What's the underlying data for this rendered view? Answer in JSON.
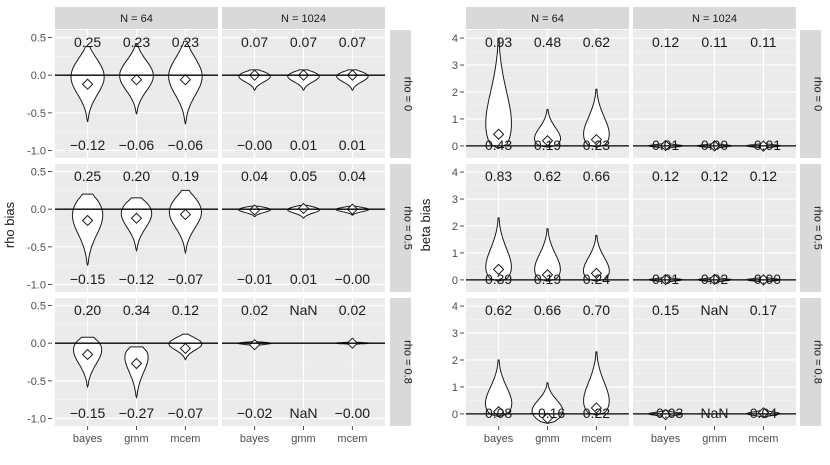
{
  "chart_data": [
    {
      "type": "violin",
      "ylabel": "rho bias",
      "ylim": [
        -1.1,
        0.6
      ],
      "yticks": [
        -1.0,
        -0.5,
        0.0,
        0.5
      ],
      "ytick_labels": [
        "-1.0",
        "-0.5",
        "0.0",
        "0.5"
      ],
      "categories": [
        "bayes",
        "gmm",
        "mcem"
      ],
      "col_labels": [
        "N = 64",
        "N = 1024"
      ],
      "row_labels": [
        "rho = 0",
        "rho = 0.5",
        "rho = 0.8"
      ],
      "reference_line": 0,
      "cells": [
        [
          {
            "top": [
              "0.25",
              "0.23",
              "0.23"
            ],
            "bottom": [
              "−0.12",
              "−0.06",
              "−0.06"
            ],
            "mean": [
              -0.12,
              -0.06,
              -0.06
            ],
            "min": [
              -0.62,
              -0.52,
              -0.65
            ],
            "max": [
              0.38,
              0.42,
              0.45
            ]
          },
          {
            "top": [
              "0.07",
              "0.07",
              "0.07"
            ],
            "bottom": [
              "−0.00",
              "0.01",
              "0.01"
            ],
            "mean": [
              0.0,
              0.0,
              0.0
            ],
            "min": [
              -0.2,
              -0.2,
              -0.2
            ],
            "max": [
              0.07,
              0.07,
              0.07
            ]
          }
        ],
        [
          {
            "top": [
              "0.25",
              "0.20",
              "0.19"
            ],
            "bottom": [
              "−0.15",
              "−0.12",
              "−0.07"
            ],
            "mean": [
              -0.15,
              -0.12,
              -0.07
            ],
            "min": [
              -0.75,
              -0.55,
              -0.58
            ],
            "max": [
              0.2,
              0.15,
              0.25
            ]
          },
          {
            "top": [
              "0.04",
              "0.05",
              "0.04"
            ],
            "bottom": [
              "−0.01",
              "0.01",
              "−0.00"
            ],
            "mean": [
              -0.01,
              0.01,
              0.0
            ],
            "min": [
              -0.1,
              -0.12,
              -0.08
            ],
            "max": [
              0.04,
              0.05,
              0.04
            ]
          }
        ],
        [
          {
            "top": [
              "0.20",
              "0.34",
              "0.12"
            ],
            "bottom": [
              "−0.15",
              "−0.27",
              "−0.07"
            ],
            "mean": [
              -0.15,
              -0.27,
              -0.07
            ],
            "min": [
              -0.58,
              -0.72,
              -0.22
            ],
            "max": [
              0.08,
              -0.05,
              0.12
            ]
          },
          {
            "top": [
              "0.02",
              "NaN",
              "0.02"
            ],
            "bottom": [
              "−0.02",
              "NaN",
              "−0.00"
            ],
            "mean": [
              -0.02,
              null,
              0.0
            ],
            "min": [
              -0.04,
              null,
              -0.02
            ],
            "max": [
              0.02,
              null,
              0.02
            ]
          }
        ]
      ]
    },
    {
      "type": "violin",
      "ylabel": "beta bias",
      "ylim": [
        -0.45,
        4.3
      ],
      "yticks": [
        0,
        1,
        2,
        3,
        4
      ],
      "ytick_labels": [
        "0",
        "1",
        "2",
        "3",
        "4"
      ],
      "categories": [
        "bayes",
        "gmm",
        "mcem"
      ],
      "col_labels": [
        "N = 64",
        "N = 1024"
      ],
      "row_labels": [
        "rho = 0",
        "rho = 0.5",
        "rho = 0.8"
      ],
      "reference_line": 0,
      "cells": [
        [
          {
            "top": [
              "0.93",
              "0.48",
              "0.62"
            ],
            "bottom": [
              "0.43",
              "0.19",
              "0.23"
            ],
            "mean": [
              0.43,
              0.19,
              0.23
            ],
            "min": [
              -0.1,
              -0.05,
              -0.05
            ],
            "max": [
              4.0,
              1.35,
              2.1
            ]
          },
          {
            "top": [
              "0.12",
              "0.11",
              "0.11"
            ],
            "bottom": [
              "0.01",
              "0.00",
              "−0.01"
            ],
            "mean": [
              0.01,
              0.0,
              -0.01
            ],
            "min": [
              -0.1,
              -0.1,
              -0.1
            ],
            "max": [
              0.12,
              0.11,
              0.11
            ]
          }
        ],
        [
          {
            "top": [
              "0.83",
              "0.62",
              "0.66"
            ],
            "bottom": [
              "0.39",
              "0.19",
              "0.24"
            ],
            "mean": [
              0.39,
              0.19,
              0.24
            ],
            "min": [
              -0.05,
              -0.05,
              -0.05
            ],
            "max": [
              2.3,
              1.9,
              1.65
            ]
          },
          {
            "top": [
              "0.12",
              "0.12",
              "0.12"
            ],
            "bottom": [
              "0.01",
              "0.02",
              "−0.00"
            ],
            "mean": [
              0.01,
              0.02,
              0.0
            ],
            "min": [
              -0.08,
              -0.08,
              -0.08
            ],
            "max": [
              0.12,
              0.12,
              0.12
            ]
          }
        ],
        [
          {
            "top": [
              "0.62",
              "0.66",
              "0.70"
            ],
            "bottom": [
              "0.08",
              "−0.16",
              "0.22"
            ],
            "mean": [
              0.08,
              -0.16,
              0.22
            ],
            "min": [
              -0.1,
              -0.35,
              -0.05
            ],
            "max": [
              2.0,
              1.15,
              2.3
            ]
          },
          {
            "top": [
              "0.15",
              "NaN",
              "0.17"
            ],
            "bottom": [
              "−0.03",
              "NaN",
              "0.04"
            ],
            "mean": [
              -0.03,
              null,
              0.04
            ],
            "min": [
              -0.12,
              null,
              -0.1
            ],
            "max": [
              0.15,
              null,
              0.17
            ]
          }
        ]
      ]
    }
  ]
}
